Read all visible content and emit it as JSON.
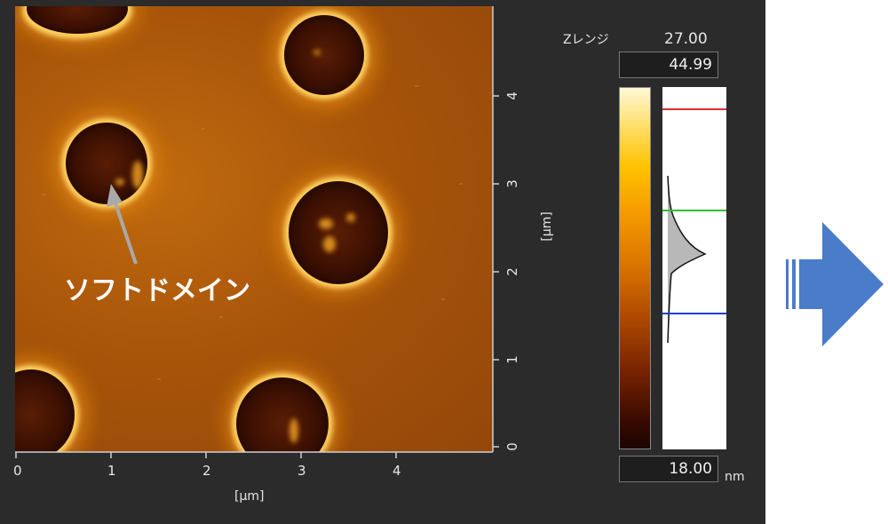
{
  "afm_image": {
    "annotation_label": "ソフトドメイン",
    "x_axis": {
      "ticks": [
        "0",
        "1",
        "2",
        "3",
        "4"
      ],
      "unit": "[μm]"
    },
    "y_axis": {
      "ticks": [
        "0",
        "1",
        "2",
        "3",
        "4"
      ],
      "unit": "[μm]"
    }
  },
  "z_range": {
    "label": "Zレンジ",
    "range_value": "27.00",
    "max_value": "44.99",
    "min_value": "18.00",
    "unit": "nm"
  },
  "histogram_markers": {
    "upper_color": "#e03030",
    "middle_color": "#30c030",
    "lower_color": "#2040d0"
  },
  "colors": {
    "panel_background": "#2b2b2b",
    "next_arrow": "#4a7cc9"
  },
  "icons": {
    "next_arrow": "right-arrow-icon",
    "pointer_arrow": "pointer-arrow-icon"
  }
}
